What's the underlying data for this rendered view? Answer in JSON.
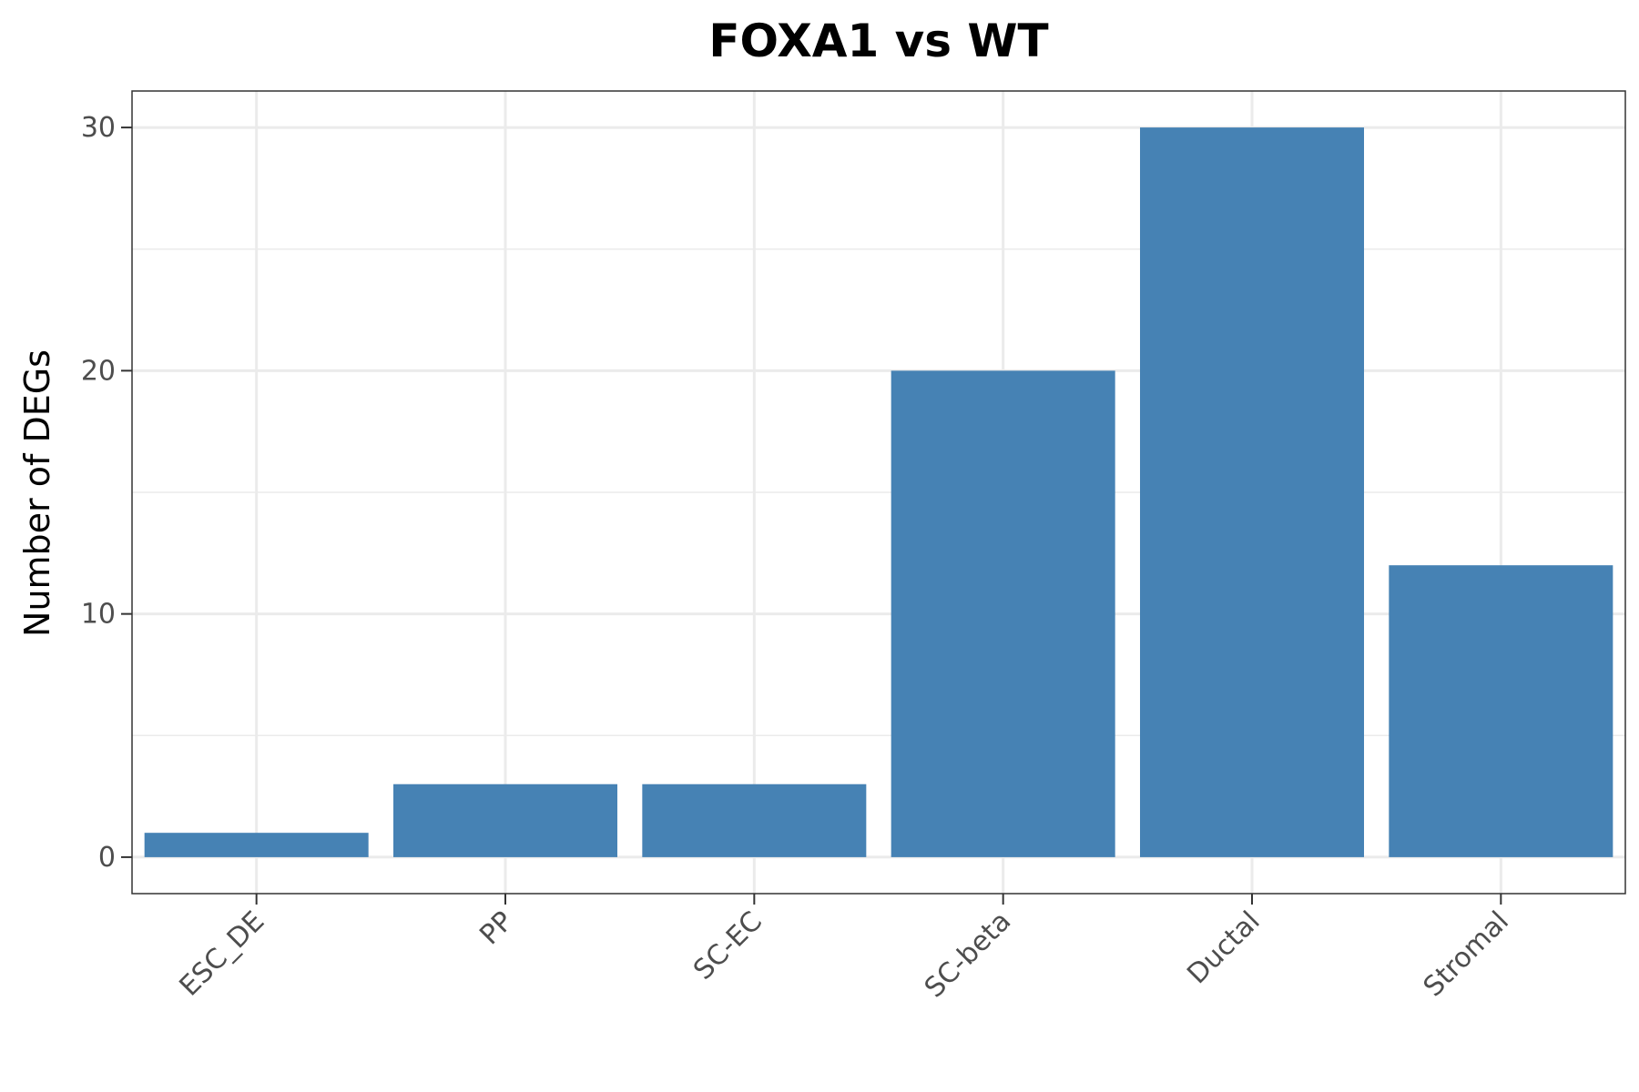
{
  "chart_data": {
    "type": "bar",
    "title": "FOXA1 vs WT",
    "xlabel": "",
    "ylabel": "Number of DEGs",
    "categories": [
      "ESC_DE",
      "PP",
      "SC-EC",
      "SC-beta",
      "Ductal",
      "Stromal"
    ],
    "values": [
      1,
      3,
      3,
      20,
      30,
      12
    ],
    "ylim": [
      -1.5,
      31.5
    ],
    "yticks": [
      0,
      10,
      20,
      30
    ],
    "ytick_labels": [
      "0",
      "10",
      "20",
      "30"
    ],
    "y_minor_ticks": [
      5,
      15,
      25
    ],
    "grid": true,
    "legend": "none",
    "bar_color": "#4682b4",
    "grid_color": "#ebebeb",
    "panel_border_color": "#333333"
  }
}
